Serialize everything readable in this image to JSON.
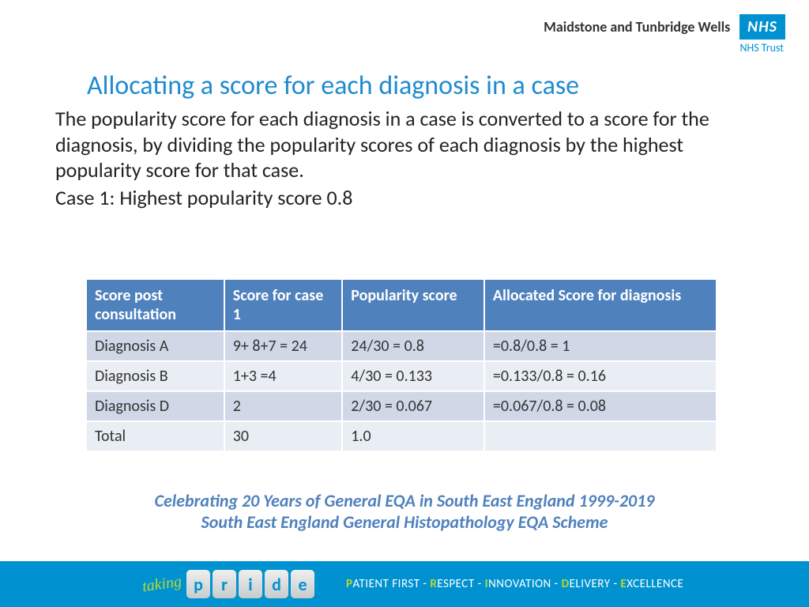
{
  "header": {
    "trust_name": "Maidstone and Tunbridge Wells",
    "nhs_logo": "NHS",
    "nhs_sub": "NHS Trust"
  },
  "title": "Allocating a score for each diagnosis in a case",
  "paragraph": "The popularity score for each diagnosis in a case is converted to a score for the diagnosis, by dividing the popularity scores of each diagnosis by the highest popularity score for that case.",
  "case_line": "Case 1: Highest popularity score 0.8",
  "table": {
    "headers": [
      "Score post consultation",
      "Score for case 1",
      "Popularity score",
      "Allocated Score for diagnosis"
    ],
    "rows": [
      [
        "Diagnosis A",
        "9+ 8+7 = 24",
        "24/30 = 0.8",
        "=0.8/0.8 = 1"
      ],
      [
        "Diagnosis B",
        "1+3 =4",
        "4/30 = 0.133",
        "=0.133/0.8 = 0.16"
      ],
      [
        "Diagnosis D",
        "2",
        "2/30 = 0.067",
        "=0.067/0.8 = 0.08"
      ],
      [
        "Total",
        "30",
        "1.0",
        ""
      ]
    ]
  },
  "celebrate": {
    "line1": "Celebrating 20 Years of General EQA in South East England  1999-2019",
    "line2": "South East England General Histopathology EQA Scheme"
  },
  "footer": {
    "taking": "taking",
    "pride": [
      "p",
      "r",
      "i",
      "d",
      "e"
    ],
    "values": [
      {
        "hl": "P",
        "rest": "ATIENT FIRST"
      },
      {
        "hl": "R",
        "rest": "ESPECT"
      },
      {
        "hl": "I",
        "rest": "NNOVATION"
      },
      {
        "hl": "D",
        "rest": "ELIVERY"
      },
      {
        "hl": "E",
        "rest": "XCELLENCE"
      }
    ]
  },
  "colors": {
    "title_color": "#1f8bd0",
    "table_header_bg": "#4f81bd",
    "row_odd_bg": "#d0d8e8",
    "row_even_bg": "#e9edf4",
    "footer_bg": "#0091d0",
    "accent_green": "#b7db2f"
  }
}
